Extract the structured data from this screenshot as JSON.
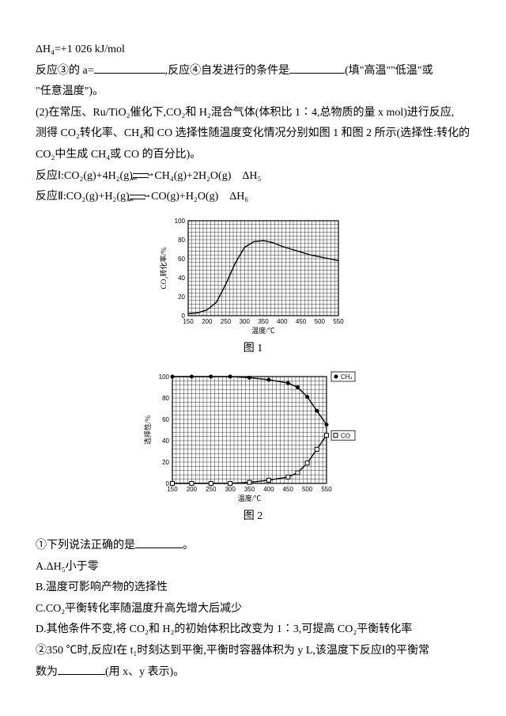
{
  "page": {
    "line1": "ΔH₄=+1 026 kJ/mol",
    "line2a": "反应③的 a=",
    "line2b": ",反应④自发进行的条件是",
    "line2c": "(填\"高温\"\"低温\"或",
    "line3": "\"任意温度\")。",
    "line4": "(2)在常压、Ru/TiO₂催化下,CO₂和 H₂混合气体(体积比 1∶4,总物质的量 x mol)进行反应,",
    "line5": "测得 CO₂转化率、CH₄和 CO 选择性随温度变化情况分别如图 1 和图 2 所示(选择性:转化的",
    "line6": "CO₂中生成 CH₄或 CO 的百分比)。",
    "line7a": "反应Ⅰ:CO₂(g)+4H₂(g)",
    "line7b": " CH₄(g)+2H₂O(g)　ΔH₅",
    "line8a": "反应Ⅱ:CO₂(g)+H₂(g)",
    "line8b": " CO(g)+H₂O(g)　ΔH₆",
    "q1": "①下列说法正确的是",
    "q1end": "。",
    "optA": "A.ΔH₅小于零",
    "optB": "B.温度可影响产物的选择性",
    "optC": "C.CO₂平衡转化率随温度升高先增大后减少",
    "optD": "D.其他条件不变,将 CO₂和 H₂的初始体积比改变为 1∶3,可提高 CO₂平衡转化率",
    "q2a": "②350 ℃时,反应Ⅰ在 t₁时刻达到平衡,平衡时容器体积为 y L,该温度下反应Ⅰ的平衡常",
    "q2b": "数为",
    "q2c": "(用 x、y 表示)。"
  },
  "chart1": {
    "type": "line",
    "caption": "图 1",
    "x_label": "温度/℃",
    "y_label": "CO₂转化率/%",
    "x_ticks": [
      150,
      200,
      250,
      300,
      350,
      400,
      450,
      500,
      550
    ],
    "y_ticks": [
      0,
      20,
      40,
      60,
      80,
      100
    ],
    "xlim": [
      150,
      550
    ],
    "ylim": [
      0,
      100
    ],
    "background": "#ffffff",
    "grid_color": "#000000",
    "curve_color": "#000000",
    "points": [
      [
        150,
        2
      ],
      [
        175,
        3
      ],
      [
        200,
        6
      ],
      [
        225,
        14
      ],
      [
        250,
        33
      ],
      [
        275,
        55
      ],
      [
        300,
        72
      ],
      [
        325,
        78
      ],
      [
        350,
        79
      ],
      [
        375,
        77
      ],
      [
        400,
        73
      ],
      [
        425,
        70
      ],
      [
        450,
        67
      ],
      [
        475,
        64
      ],
      [
        500,
        62
      ],
      [
        525,
        60
      ],
      [
        550,
        58
      ]
    ]
  },
  "chart2": {
    "type": "line",
    "caption": "图 2",
    "x_label": "温度/℃",
    "y_label": "选择性/%",
    "x_ticks": [
      150,
      200,
      250,
      300,
      350,
      400,
      450,
      500,
      550
    ],
    "y_ticks": [
      0,
      20,
      40,
      60,
      80,
      100
    ],
    "xlim": [
      150,
      550
    ],
    "ylim": [
      0,
      100
    ],
    "background": "#ffffff",
    "grid_color": "#000000",
    "curve_color": "#000000",
    "legend": {
      "ch4": "CH₄",
      "co": "CO"
    },
    "series_ch4": [
      [
        150,
        100
      ],
      [
        200,
        100
      ],
      [
        250,
        100
      ],
      [
        300,
        100
      ],
      [
        350,
        99
      ],
      [
        400,
        97
      ],
      [
        450,
        94
      ],
      [
        475,
        90
      ],
      [
        500,
        81
      ],
      [
        525,
        68
      ],
      [
        550,
        55
      ]
    ],
    "series_co": [
      [
        150,
        0
      ],
      [
        200,
        0
      ],
      [
        250,
        0
      ],
      [
        300,
        0
      ],
      [
        350,
        1
      ],
      [
        400,
        3
      ],
      [
        450,
        6
      ],
      [
        475,
        10
      ],
      [
        500,
        19
      ],
      [
        525,
        32
      ],
      [
        550,
        45
      ]
    ],
    "marker_step_ch4": 50,
    "marker_co": "square"
  }
}
